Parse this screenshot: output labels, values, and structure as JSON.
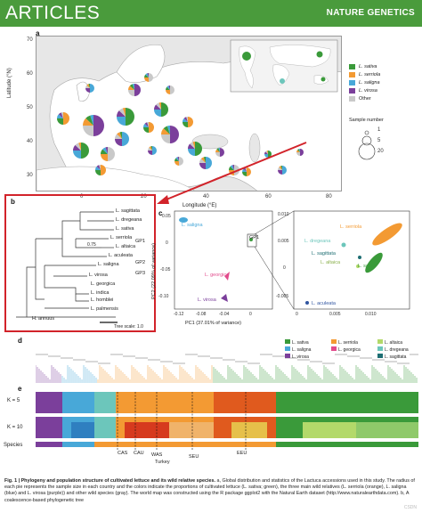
{
  "header": {
    "left": "ARTICLES",
    "right": "NATURE GENETICS"
  },
  "colors": {
    "band": "#4a9b3c",
    "sativa": "#3a9a3a",
    "serriola": "#f39a33",
    "saligna": "#48a8d8",
    "virosa": "#7b3f9b",
    "other": "#c9c9c9",
    "georgica": "#e24b8c",
    "altaica": "#b3d96a",
    "dregeana": "#6cc6bb"
  },
  "panel_a": {
    "letter": "a",
    "ylabel": "Latitude (°N)",
    "xlabel": "Longitude (°E)",
    "yticks": [
      "70",
      "60",
      "50",
      "40",
      "30"
    ],
    "xticks": [
      "0",
      "20",
      "40",
      "60",
      "80"
    ],
    "legend": [
      {
        "label": "L. sativa",
        "color": "#3a9a3a"
      },
      {
        "label": "L. serriola",
        "color": "#f39a33"
      },
      {
        "label": "L. saligna",
        "color": "#48a8d8"
      },
      {
        "label": "L. virosa",
        "color": "#7b3f9b"
      },
      {
        "label": "Other",
        "color": "#c9c9c9"
      }
    ],
    "size_title": "Sample number",
    "size_labels": [
      "1",
      "5",
      "20"
    ]
  },
  "panel_b": {
    "letter": "b",
    "taxa": [
      "L. sagittata",
      "L. dregeana",
      "L. sativa",
      "L. serriola",
      "L. altaica",
      "L. aculeata",
      "L. saligna",
      "L. virosa",
      "L. georgica",
      "L. indica",
      "L. homblei",
      "L. palmensis",
      "H. annuus"
    ],
    "groups": [
      "GP1",
      "GP2",
      "GP3"
    ],
    "support": "0.75",
    "scale": "Tree scale: 1.0"
  },
  "panel_c": {
    "letter": "c",
    "xlabel": "PC1 (37.01% of variance)",
    "ylabel": "PC2 (22.09% of variance)",
    "xticks": [
      "-0.12",
      "-0.08",
      "-0.04",
      "0"
    ],
    "yticks": [
      "0.05",
      "0",
      "-0.05",
      "-0.10"
    ],
    "inset_xticks": [
      "0",
      "0.005",
      "0.010"
    ],
    "inset_yticks": [
      "0.010",
      "0.005",
      "0",
      "-0.005"
    ],
    "labels": [
      "L. saligna",
      "L. georgica",
      "L. virosa",
      "GP1",
      "L. serriola",
      "L. dregeana",
      "L. sagittata",
      "L. altaica",
      "L. sativa",
      "L. aculeata"
    ]
  },
  "panel_d": {
    "letter": "d"
  },
  "panel_e": {
    "letter": "e",
    "rows": [
      "K = 5",
      "K = 10",
      "Species"
    ],
    "legend": [
      {
        "label": "L. sativa",
        "color": "#3a9a3a"
      },
      {
        "label": "L. serriola",
        "color": "#f39a33"
      },
      {
        "label": "L. saligna",
        "color": "#48a8d8"
      },
      {
        "label": "L. virosa",
        "color": "#7b3f9b"
      },
      {
        "label": "L. georgica",
        "color": "#e24b8c"
      },
      {
        "label": "L. dregeana",
        "color": "#6cc6bb"
      },
      {
        "label": "L. altaica",
        "color": "#b3d96a"
      },
      {
        "label": "L. sagittata",
        "color": "#1e6e73"
      }
    ],
    "region_labels": [
      "CAS",
      "CAU",
      "WAS",
      "Turkey",
      "SEU",
      "EEU"
    ]
  },
  "caption": {
    "title": "Fig. 1 | Phylogeny and population structure of cultivated lettuce and its wild relative species.",
    "body": " a, Global distribution and statistics of the Lactuca accessions used in this study. The radius of each pie represents the sample size in each country and the colors indicate the proportions of cultivated lettuce (L. sativa; green), the three main wild relatives (L. serriola (orange), L. saligna (blue) and L. virosa (purple)) and other wild species (gray). The world map was constructed using the R package ggplot2 with the Natural Earth dataset (http://www.naturalearthdata.com). b, A coalescence-based phylogenetic tree"
  },
  "watermark": "CSDN"
}
